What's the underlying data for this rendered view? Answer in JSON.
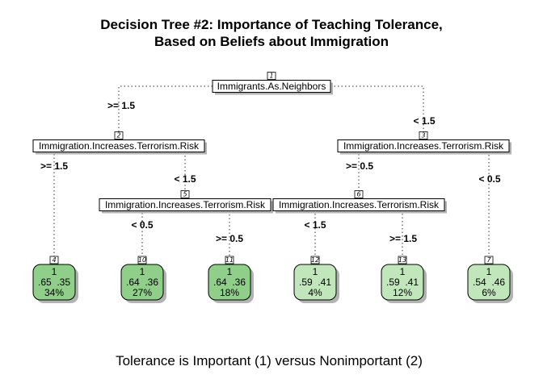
{
  "title": {
    "line1": "Decision Tree #2: Importance of Teaching Tolerance,",
    "line2": "Based on Beliefs about Immigration"
  },
  "caption": "Tolerance is Important (1) versus Nonimportant (2)",
  "colors": {
    "leaf_dark": "#8fcf8a",
    "leaf_light": "#c2e6bc",
    "shadow": "#b3b3b3",
    "edge": "#555555"
  },
  "splits": [
    {
      "id": "1",
      "label": "Immigrants.As.Neighbors"
    },
    {
      "id": "2",
      "label": "Immigration.Increases.Terrorism.Risk"
    },
    {
      "id": "3",
      "label": "Immigration.Increases.Terrorism.Risk"
    },
    {
      "id": "5",
      "label": "Immigration.Increases.Terrorism.Risk"
    },
    {
      "id": "6",
      "label": "Immigration.Increases.Terrorism.Risk"
    }
  ],
  "edges": [
    {
      "from": "1",
      "to": "2",
      "label": ">= 1.5"
    },
    {
      "from": "1",
      "to": "3",
      "label": "< 1.5"
    },
    {
      "from": "2",
      "to": "4",
      "label": ">= 1.5"
    },
    {
      "from": "2",
      "to": "5",
      "label": "< 1.5"
    },
    {
      "from": "3",
      "to": "6",
      "label": ">= 0.5"
    },
    {
      "from": "3",
      "to": "7",
      "label": "< 0.5"
    },
    {
      "from": "5",
      "to": "10",
      "label": "< 0.5"
    },
    {
      "from": "5",
      "to": "11",
      "label": ">= 0.5"
    },
    {
      "from": "6",
      "to": "12",
      "label": "< 1.5"
    },
    {
      "from": "6",
      "to": "13",
      "label": ">= 1.5"
    }
  ],
  "leaves": [
    {
      "id": "4",
      "class": "1",
      "probs": ".65  .35",
      "pct": "34%",
      "shade": "dark"
    },
    {
      "id": "10",
      "class": "1",
      "probs": ".64  .36",
      "pct": "27%",
      "shade": "dark"
    },
    {
      "id": "11",
      "class": "1",
      "probs": ".64  .36",
      "pct": "18%",
      "shade": "dark"
    },
    {
      "id": "12",
      "class": "1",
      "probs": ".59  .41",
      "pct": "4%",
      "shade": "light"
    },
    {
      "id": "13",
      "class": "1",
      "probs": ".59  .41",
      "pct": "12%",
      "shade": "light"
    },
    {
      "id": "7",
      "class": "1",
      "probs": ".54  .46",
      "pct": "6%",
      "shade": "light"
    }
  ]
}
